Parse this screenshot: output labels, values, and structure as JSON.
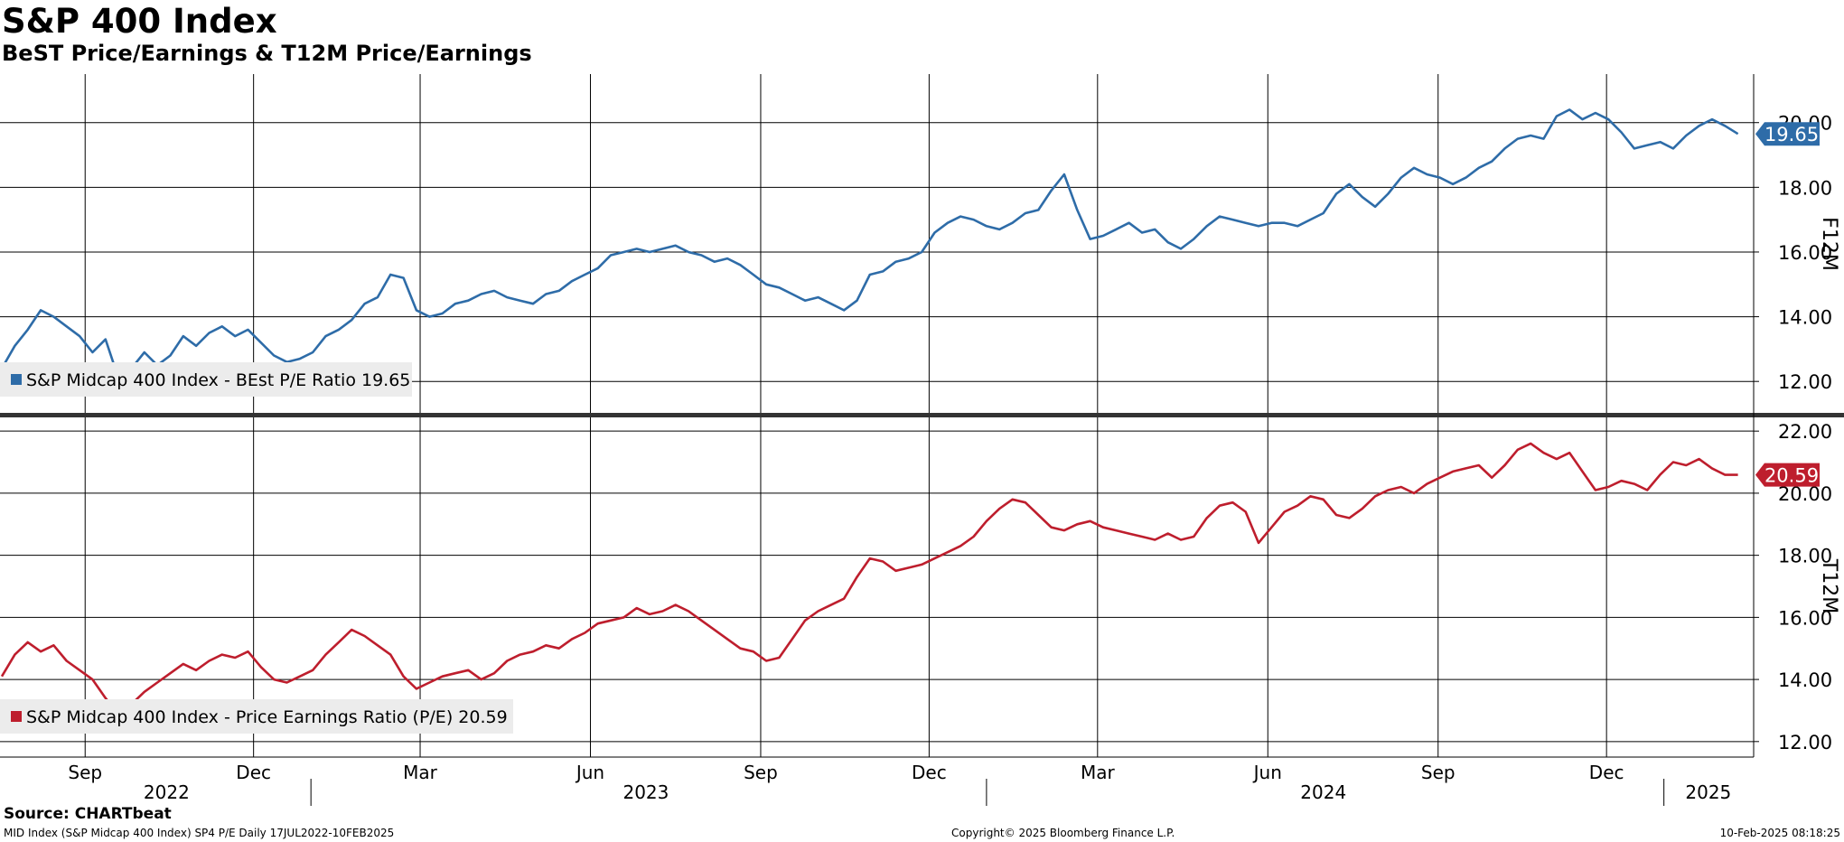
{
  "header": {
    "title": "S&P 400 Index",
    "subtitle": "BeST Price/Earnings & T12M Price/Earnings"
  },
  "footer": {
    "source": "Source: CHARTbeat",
    "left": "MID Index (S&P Midcap 400 Index) SP4 P/E  Daily 17JUL2022-10FEB2025",
    "center": "Copyright© 2025 Bloomberg Finance L.P.",
    "right": "10-Feb-2025 08:18:25"
  },
  "colors": {
    "blue": "#2e6ca8",
    "red": "#be1e2d",
    "grid": "#000000",
    "legend_bg": "#ececec"
  },
  "chart_data": [
    {
      "type": "line",
      "axis_label": "F12M",
      "ylim": [
        11,
        21.5
      ],
      "yticks": [
        "12.00",
        "14.00",
        "16.00",
        "18.00",
        "20.00"
      ],
      "grid": true,
      "legend_position": "bottom-left",
      "legend_label": "S&P Midcap 400 Index - BEst P/E Ratio 19.65",
      "last_value_label": "19.65",
      "series": [
        {
          "name": "S&P Midcap 400 Index - BEst P/E Ratio",
          "color": "#2e6ca8",
          "x": [
            "2022-07-18",
            "2022-07-25",
            "2022-08-01",
            "2022-08-08",
            "2022-08-15",
            "2022-08-22",
            "2022-08-29",
            "2022-09-05",
            "2022-09-12",
            "2022-09-19",
            "2022-09-26",
            "2022-10-03",
            "2022-10-10",
            "2022-10-17",
            "2022-10-24",
            "2022-10-31",
            "2022-11-07",
            "2022-11-14",
            "2022-11-21",
            "2022-11-28",
            "2022-12-05",
            "2022-12-12",
            "2022-12-19",
            "2022-12-26",
            "2023-01-02",
            "2023-01-09",
            "2023-01-16",
            "2023-01-23",
            "2023-01-30",
            "2023-02-06",
            "2023-02-13",
            "2023-02-20",
            "2023-02-27",
            "2023-03-06",
            "2023-03-13",
            "2023-03-20",
            "2023-03-27",
            "2023-04-03",
            "2023-04-10",
            "2023-04-17",
            "2023-04-24",
            "2023-05-01",
            "2023-05-08",
            "2023-05-15",
            "2023-05-22",
            "2023-05-29",
            "2023-06-05",
            "2023-06-12",
            "2023-06-19",
            "2023-06-26",
            "2023-07-03",
            "2023-07-10",
            "2023-07-17",
            "2023-07-24",
            "2023-07-31",
            "2023-08-07",
            "2023-08-14",
            "2023-08-21",
            "2023-08-28",
            "2023-09-04",
            "2023-09-11",
            "2023-09-18",
            "2023-09-25",
            "2023-10-02",
            "2023-10-09",
            "2023-10-16",
            "2023-10-23",
            "2023-10-30",
            "2023-11-06",
            "2023-11-13",
            "2023-11-20",
            "2023-11-27",
            "2023-12-04",
            "2023-12-11",
            "2023-12-18",
            "2023-12-25",
            "2024-01-01",
            "2024-01-08",
            "2024-01-15",
            "2024-01-22",
            "2024-01-29",
            "2024-02-05",
            "2024-02-12",
            "2024-02-19",
            "2024-02-26",
            "2024-03-04",
            "2024-03-11",
            "2024-03-18",
            "2024-03-25",
            "2024-04-01",
            "2024-04-08",
            "2024-04-15",
            "2024-04-22",
            "2024-04-29",
            "2024-05-06",
            "2024-05-13",
            "2024-05-20",
            "2024-05-27",
            "2024-06-03",
            "2024-06-10",
            "2024-06-17",
            "2024-06-24",
            "2024-07-01",
            "2024-07-08",
            "2024-07-15",
            "2024-07-22",
            "2024-07-29",
            "2024-08-05",
            "2024-08-12",
            "2024-08-19",
            "2024-08-26",
            "2024-09-02",
            "2024-09-09",
            "2024-09-16",
            "2024-09-23",
            "2024-09-30",
            "2024-10-07",
            "2024-10-14",
            "2024-10-21",
            "2024-10-28",
            "2024-11-04",
            "2024-11-11",
            "2024-11-18",
            "2024-11-25",
            "2024-12-02",
            "2024-12-09",
            "2024-12-16",
            "2024-12-23",
            "2024-12-30",
            "2025-01-06",
            "2025-01-13",
            "2025-01-20",
            "2025-01-27",
            "2025-02-03",
            "2025-02-10"
          ],
          "values": [
            12.4,
            13.1,
            13.6,
            14.2,
            14.0,
            13.7,
            13.4,
            12.9,
            13.3,
            12.1,
            12.4,
            12.9,
            12.5,
            12.8,
            13.4,
            13.1,
            13.5,
            13.7,
            13.4,
            13.6,
            13.2,
            12.8,
            12.6,
            12.7,
            12.9,
            13.4,
            13.6,
            13.9,
            14.4,
            14.6,
            15.3,
            15.2,
            14.2,
            14.0,
            14.1,
            14.4,
            14.5,
            14.7,
            14.8,
            14.6,
            14.5,
            14.4,
            14.7,
            14.8,
            15.1,
            15.3,
            15.5,
            15.9,
            16.0,
            16.1,
            16.0,
            16.1,
            16.2,
            16.0,
            15.9,
            15.7,
            15.8,
            15.6,
            15.3,
            15.0,
            14.9,
            14.7,
            14.5,
            14.6,
            14.4,
            14.2,
            14.5,
            15.3,
            15.4,
            15.7,
            15.8,
            16.0,
            16.6,
            16.9,
            17.1,
            17.0,
            16.8,
            16.7,
            16.9,
            17.2,
            17.3,
            17.9,
            18.4,
            17.3,
            16.4,
            16.5,
            16.7,
            16.9,
            16.6,
            16.7,
            16.3,
            16.1,
            16.4,
            16.8,
            17.1,
            17.0,
            16.9,
            16.8,
            16.9,
            16.9,
            16.8,
            17.0,
            17.2,
            17.8,
            18.1,
            17.7,
            17.4,
            17.8,
            18.3,
            18.6,
            18.4,
            18.3,
            18.1,
            18.3,
            18.6,
            18.8,
            19.2,
            19.5,
            19.6,
            19.5,
            20.2,
            20.4,
            20.1,
            20.3,
            20.1,
            19.7,
            19.2,
            19.3,
            19.4,
            19.2,
            19.6,
            19.9,
            20.1,
            19.9,
            19.65
          ]
        }
      ]
    },
    {
      "type": "line",
      "axis_label": "T12M",
      "ylim": [
        11.5,
        22.5
      ],
      "yticks": [
        "12.00",
        "14.00",
        "16.00",
        "18.00",
        "20.00",
        "22.00"
      ],
      "grid": true,
      "legend_position": "bottom-left",
      "legend_label": "S&P Midcap 400 Index - Price Earnings Ratio (P/E) 20.59",
      "last_value_label": "20.59",
      "series": [
        {
          "name": "S&P Midcap 400 Index - Price Earnings Ratio (P/E)",
          "color": "#be1e2d",
          "x": [
            "2022-07-18",
            "2022-07-25",
            "2022-08-01",
            "2022-08-08",
            "2022-08-15",
            "2022-08-22",
            "2022-08-29",
            "2022-09-05",
            "2022-09-12",
            "2022-09-19",
            "2022-09-26",
            "2022-10-03",
            "2022-10-10",
            "2022-10-17",
            "2022-10-24",
            "2022-10-31",
            "2022-11-07",
            "2022-11-14",
            "2022-11-21",
            "2022-11-28",
            "2022-12-05",
            "2022-12-12",
            "2022-12-19",
            "2022-12-26",
            "2023-01-02",
            "2023-01-09",
            "2023-01-16",
            "2023-01-23",
            "2023-01-30",
            "2023-02-06",
            "2023-02-13",
            "2023-02-20",
            "2023-02-27",
            "2023-03-06",
            "2023-03-13",
            "2023-03-20",
            "2023-03-27",
            "2023-04-03",
            "2023-04-10",
            "2023-04-17",
            "2023-04-24",
            "2023-05-01",
            "2023-05-08",
            "2023-05-15",
            "2023-05-22",
            "2023-05-29",
            "2023-06-05",
            "2023-06-12",
            "2023-06-19",
            "2023-06-26",
            "2023-07-03",
            "2023-07-10",
            "2023-07-17",
            "2023-07-24",
            "2023-07-31",
            "2023-08-07",
            "2023-08-14",
            "2023-08-21",
            "2023-08-28",
            "2023-09-04",
            "2023-09-11",
            "2023-09-18",
            "2023-09-25",
            "2023-10-02",
            "2023-10-09",
            "2023-10-16",
            "2023-10-23",
            "2023-10-30",
            "2023-11-06",
            "2023-11-13",
            "2023-11-20",
            "2023-11-27",
            "2023-12-04",
            "2023-12-11",
            "2023-12-18",
            "2023-12-25",
            "2024-01-01",
            "2024-01-08",
            "2024-01-15",
            "2024-01-22",
            "2024-01-29",
            "2024-02-05",
            "2024-02-12",
            "2024-02-19",
            "2024-02-26",
            "2024-03-04",
            "2024-03-11",
            "2024-03-18",
            "2024-03-25",
            "2024-04-01",
            "2024-04-08",
            "2024-04-15",
            "2024-04-22",
            "2024-04-29",
            "2024-05-06",
            "2024-05-13",
            "2024-05-20",
            "2024-05-27",
            "2024-06-03",
            "2024-06-10",
            "2024-06-17",
            "2024-06-24",
            "2024-07-01",
            "2024-07-08",
            "2024-07-15",
            "2024-07-22",
            "2024-07-29",
            "2024-08-05",
            "2024-08-12",
            "2024-08-19",
            "2024-08-26",
            "2024-09-02",
            "2024-09-09",
            "2024-09-16",
            "2024-09-23",
            "2024-09-30",
            "2024-10-07",
            "2024-10-14",
            "2024-10-21",
            "2024-10-28",
            "2024-11-04",
            "2024-11-11",
            "2024-11-18",
            "2024-11-25",
            "2024-12-02",
            "2024-12-09",
            "2024-12-16",
            "2024-12-23",
            "2024-12-30",
            "2025-01-06",
            "2025-01-13",
            "2025-01-20",
            "2025-01-27",
            "2025-02-03",
            "2025-02-10"
          ],
          "values": [
            14.1,
            14.8,
            15.2,
            14.9,
            15.1,
            14.6,
            14.3,
            14.0,
            13.4,
            12.9,
            13.2,
            13.6,
            13.9,
            14.2,
            14.5,
            14.3,
            14.6,
            14.8,
            14.7,
            14.9,
            14.4,
            14.0,
            13.9,
            14.1,
            14.3,
            14.8,
            15.2,
            15.6,
            15.4,
            15.1,
            14.8,
            14.1,
            13.7,
            13.9,
            14.1,
            14.2,
            14.3,
            14.0,
            14.2,
            14.6,
            14.8,
            14.9,
            15.1,
            15.0,
            15.3,
            15.5,
            15.8,
            15.9,
            16.0,
            16.3,
            16.1,
            16.2,
            16.4,
            16.2,
            15.9,
            15.6,
            15.3,
            15.0,
            14.9,
            14.6,
            14.7,
            15.3,
            15.9,
            16.2,
            16.4,
            16.6,
            17.3,
            17.9,
            17.8,
            17.5,
            17.6,
            17.7,
            17.9,
            18.1,
            18.3,
            18.6,
            19.1,
            19.5,
            19.8,
            19.7,
            19.3,
            18.9,
            18.8,
            19.0,
            19.1,
            18.9,
            18.8,
            18.7,
            18.6,
            18.5,
            18.7,
            18.5,
            18.6,
            19.2,
            19.6,
            19.7,
            19.4,
            18.4,
            18.9,
            19.4,
            19.6,
            19.9,
            19.8,
            19.3,
            19.2,
            19.5,
            19.9,
            20.1,
            20.2,
            20.0,
            20.3,
            20.5,
            20.7,
            20.8,
            20.9,
            20.5,
            20.9,
            21.4,
            21.6,
            21.3,
            21.1,
            21.3,
            20.7,
            20.1,
            20.2,
            20.4,
            20.3,
            20.1,
            20.6,
            21.0,
            20.9,
            21.1,
            20.8,
            20.59,
            20.59
          ]
        }
      ]
    }
  ],
  "x_axis": {
    "months": [
      {
        "label": "Sep",
        "date": "2022-09-01"
      },
      {
        "label": "Dec",
        "date": "2022-12-01"
      },
      {
        "label": "Mar",
        "date": "2023-03-01"
      },
      {
        "label": "Jun",
        "date": "2023-06-01"
      },
      {
        "label": "Sep",
        "date": "2023-09-01"
      },
      {
        "label": "Dec",
        "date": "2023-12-01"
      },
      {
        "label": "Mar",
        "date": "2024-03-01"
      },
      {
        "label": "Jun",
        "date": "2024-06-01"
      },
      {
        "label": "Sep",
        "date": "2024-09-01"
      },
      {
        "label": "Dec",
        "date": "2024-12-01"
      }
    ],
    "years": [
      {
        "label": "2022",
        "date": "2022-10-15"
      },
      {
        "label": "2023",
        "date": "2023-07-01"
      },
      {
        "label": "2024",
        "date": "2024-07-01"
      },
      {
        "label": "2025",
        "date": "2025-01-25"
      }
    ],
    "year_separators": [
      "2023-01-01",
      "2024-01-01",
      "2025-01-01"
    ]
  }
}
